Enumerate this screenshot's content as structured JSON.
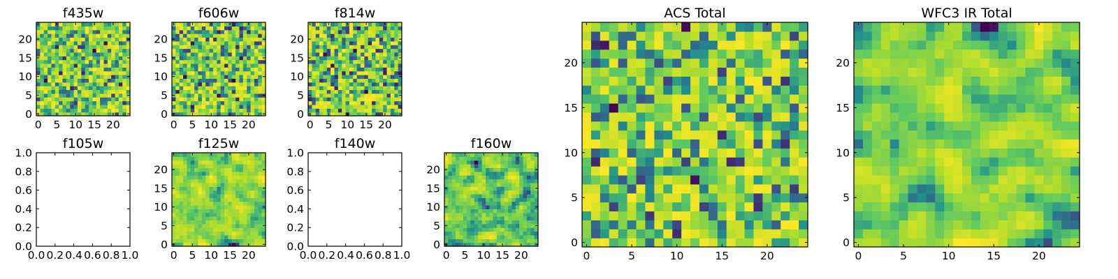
{
  "figure": {
    "background": "#ffffff",
    "colormap": "viridis",
    "colormap_stops": [
      "#440154",
      "#3b528b",
      "#21918c",
      "#5ec962",
      "#b5de2b",
      "#fde725"
    ]
  },
  "chart_data": [
    {
      "id": "f435w",
      "type": "heatmap",
      "title": "f435w",
      "grid_size": [
        25,
        25
      ],
      "xlim": [
        -0.5,
        24.5
      ],
      "ylim": [
        -0.5,
        24.5
      ],
      "xticks": [
        0,
        5,
        10,
        15,
        20
      ],
      "yticks": [
        0,
        5,
        10,
        15,
        20
      ],
      "pattern": "noise"
    },
    {
      "id": "f606w",
      "type": "heatmap",
      "title": "f606w",
      "grid_size": [
        25,
        25
      ],
      "xlim": [
        -0.5,
        24.5
      ],
      "ylim": [
        -0.5,
        24.5
      ],
      "xticks": [
        0,
        5,
        10,
        15,
        20
      ],
      "yticks": [
        0,
        5,
        10,
        15,
        20
      ],
      "pattern": "noise"
    },
    {
      "id": "f814w",
      "type": "heatmap",
      "title": "f814w",
      "grid_size": [
        25,
        25
      ],
      "xlim": [
        -0.5,
        24.5
      ],
      "ylim": [
        -0.5,
        24.5
      ],
      "xticks": [
        0,
        5,
        10,
        15,
        20
      ],
      "yticks": [
        0,
        5,
        10,
        15,
        20
      ],
      "pattern": "noise"
    },
    {
      "id": "f105w",
      "type": "empty",
      "title": "f105w",
      "xlim": [
        0,
        1
      ],
      "ylim": [
        0,
        1
      ],
      "xticks": [
        "0.0",
        "0.2",
        "0.4",
        "0.6",
        "0.8",
        "1.0"
      ],
      "yticks": [
        "0.0",
        "0.2",
        "0.4",
        "0.6",
        "0.8",
        "1.0"
      ]
    },
    {
      "id": "f125w",
      "type": "heatmap",
      "title": "f125w",
      "grid_size": [
        25,
        25
      ],
      "xlim": [
        -0.5,
        24.5
      ],
      "ylim": [
        -0.5,
        24.5
      ],
      "xticks": [
        0,
        5,
        10,
        15,
        20
      ],
      "yticks": [
        0,
        5,
        10,
        15,
        20
      ],
      "pattern": "smooth"
    },
    {
      "id": "f140w",
      "type": "empty",
      "title": "f140w",
      "xlim": [
        0,
        1
      ],
      "ylim": [
        0,
        1
      ],
      "xticks": [
        "0.0",
        "0.2",
        "0.4",
        "0.6",
        "0.8",
        "1.0"
      ],
      "yticks": [
        "0.0",
        "0.2",
        "0.4",
        "0.6",
        "0.8",
        "1.0"
      ]
    },
    {
      "id": "f160w",
      "type": "heatmap",
      "title": "f160w",
      "grid_size": [
        25,
        25
      ],
      "xlim": [
        -0.5,
        24.5
      ],
      "ylim": [
        -0.5,
        24.5
      ],
      "xticks": [
        0,
        5,
        10,
        15,
        20
      ],
      "yticks": [
        0,
        5,
        10,
        15,
        20
      ],
      "pattern": "smooth"
    },
    {
      "id": "acs_total",
      "type": "heatmap",
      "title": "ACS Total",
      "grid_size": [
        25,
        25
      ],
      "xlim": [
        -0.5,
        24.5
      ],
      "ylim": [
        -0.5,
        24.5
      ],
      "xticks": [
        0,
        5,
        10,
        15,
        20
      ],
      "yticks": [
        0,
        5,
        10,
        15,
        20
      ],
      "pattern": "noise"
    },
    {
      "id": "wfc3_ir_total",
      "type": "heatmap",
      "title": "WFC3 IR Total",
      "grid_size": [
        25,
        25
      ],
      "xlim": [
        -0.5,
        24.5
      ],
      "ylim": [
        -0.5,
        24.5
      ],
      "xticks": [
        0,
        5,
        10,
        15,
        20
      ],
      "yticks": [
        0,
        5,
        10,
        15,
        20
      ],
      "pattern": "smooth"
    }
  ]
}
